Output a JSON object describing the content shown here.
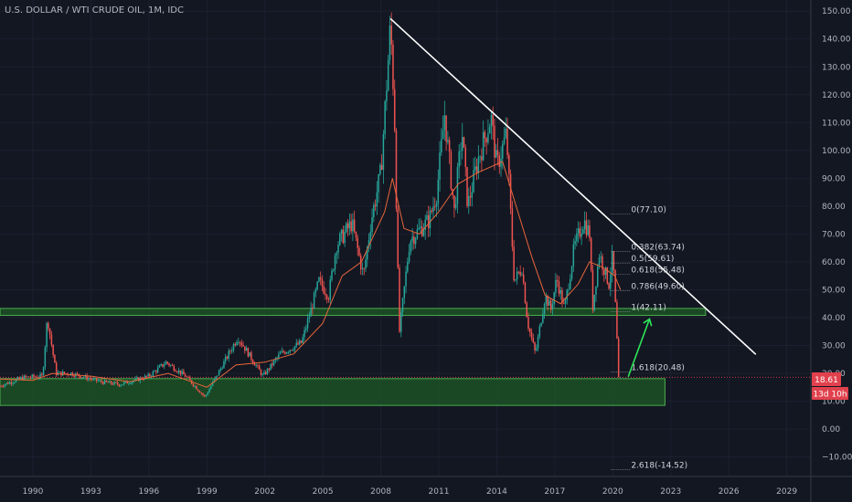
{
  "chart": {
    "title": "U.S. DOLLAR / WTI CRUDE OIL, 1M, IDC",
    "price_tag": "18.61",
    "countdown_tag": "13d 10h",
    "colors": {
      "background": "#131722",
      "up": "#26a69a",
      "down": "#ef5350",
      "ma": "#e8663a",
      "zone_fill": "#1e5a26",
      "zone_stroke": "#4caf50",
      "trendline": "#ffffff",
      "arrow": "#2ee65a",
      "tag": "#e0414d",
      "fib_line": "#9598a1"
    }
  },
  "chart_data": {
    "type": "candlestick",
    "title": "U.S. DOLLAR / WTI CRUDE OIL, 1M, IDC",
    "xlabel": "",
    "ylabel": "",
    "x_range": [
      1988.3,
      2030.2
    ],
    "ylim": [
      -17,
      154
    ],
    "x_ticks": [
      1990,
      1993,
      1996,
      1999,
      2002,
      2005,
      2008,
      2011,
      2014,
      2017,
      2020,
      2023,
      2026,
      2029
    ],
    "y_ticks": [
      -10,
      0,
      10,
      20,
      30,
      40,
      50,
      60,
      70,
      80,
      90,
      100,
      110,
      120,
      130,
      140,
      150
    ],
    "last_price": 18.61,
    "price_path": [
      [
        1988.3,
        15.5
      ],
      [
        1989.5,
        18.5
      ],
      [
        1990.5,
        19
      ],
      [
        1990.75,
        40
      ],
      [
        1991.2,
        20
      ],
      [
        1992,
        20
      ],
      [
        1993.5,
        17
      ],
      [
        1994.5,
        16
      ],
      [
        1996,
        19
      ],
      [
        1996.9,
        24
      ],
      [
        1997.9,
        19
      ],
      [
        1998.9,
        11.5
      ],
      [
        1999.5,
        19
      ],
      [
        2000.6,
        33
      ],
      [
        2001.9,
        19
      ],
      [
        2002.8,
        27
      ],
      [
        2003.9,
        31
      ],
      [
        2004.8,
        53
      ],
      [
        2005.3,
        48
      ],
      [
        2005.7,
        66
      ],
      [
        2006.5,
        74
      ],
      [
        2007.1,
        55
      ],
      [
        2007.5,
        75
      ],
      [
        2008.0,
        92
      ],
      [
        2008.5,
        145
      ],
      [
        2008.7,
        115
      ],
      [
        2008.95,
        34
      ],
      [
        2009.5,
        68
      ],
      [
        2010.5,
        75
      ],
      [
        2010.9,
        85
      ],
      [
        2011.3,
        113
      ],
      [
        2011.8,
        78
      ],
      [
        2012.2,
        107
      ],
      [
        2012.5,
        80
      ],
      [
        2013.0,
        96
      ],
      [
        2013.7,
        112
      ],
      [
        2014.0,
        94
      ],
      [
        2014.5,
        106
      ],
      [
        2014.9,
        53
      ],
      [
        2015.3,
        58
      ],
      [
        2015.6,
        38
      ],
      [
        2016.0,
        27
      ],
      [
        2016.5,
        48
      ],
      [
        2016.8,
        43
      ],
      [
        2017.1,
        54
      ],
      [
        2017.5,
        43
      ],
      [
        2018.0,
        65
      ],
      [
        2018.5,
        75
      ],
      [
        2018.8,
        70
      ],
      [
        2018.95,
        43
      ],
      [
        2019.3,
        63
      ],
      [
        2019.8,
        52
      ],
      [
        2020.0,
        63
      ],
      [
        2020.15,
        42
      ],
      [
        2020.3,
        19
      ],
      [
        2020.4,
        18.61
      ]
    ],
    "moving_average": [
      [
        1988.3,
        18
      ],
      [
        1990,
        17.5
      ],
      [
        1991,
        20
      ],
      [
        1993,
        19
      ],
      [
        1995,
        17
      ],
      [
        1997,
        20
      ],
      [
        1999,
        15
      ],
      [
        2000.5,
        23
      ],
      [
        2002,
        24
      ],
      [
        2003.5,
        27
      ],
      [
        2005,
        38
      ],
      [
        2006,
        55
      ],
      [
        2007,
        60
      ],
      [
        2008.2,
        78
      ],
      [
        2008.6,
        90
      ],
      [
        2009.2,
        72
      ],
      [
        2010,
        70
      ],
      [
        2011,
        78
      ],
      [
        2012,
        88
      ],
      [
        2013,
        92
      ],
      [
        2014.3,
        96
      ],
      [
        2015,
        80
      ],
      [
        2015.8,
        62
      ],
      [
        2016.5,
        48
      ],
      [
        2017.3,
        45
      ],
      [
        2018.2,
        52
      ],
      [
        2018.8,
        60
      ],
      [
        2019.5,
        58
      ],
      [
        2020.1,
        55
      ],
      [
        2020.4,
        50
      ]
    ],
    "zones": [
      {
        "x": [
          1988.3,
          2024.8
        ],
        "y": [
          40.8,
          43.3
        ]
      },
      {
        "x": [
          1988.3,
          2022.7
        ],
        "y": [
          8.5,
          18.1
        ]
      }
    ],
    "trendline": {
      "from": [
        2008.5,
        147.3
      ],
      "to": [
        2027.4,
        26.8
      ]
    },
    "projection_arrow": {
      "from": [
        2020.8,
        18.8
      ],
      "to": [
        2021.9,
        39.5
      ]
    },
    "fib_levels": [
      {
        "label": "0(77.10)",
        "value": 77.1
      },
      {
        "label": "0.382(63.74)",
        "value": 63.74
      },
      {
        "label": "0.5(59.61)",
        "value": 59.61
      },
      {
        "label": "0.618(55.48)",
        "value": 55.48
      },
      {
        "label": "0.786(49.60)",
        "value": 49.6
      },
      {
        "label": "1(42.11)",
        "value": 42.11
      },
      {
        "label": "1.618(20.48)",
        "value": 20.48
      },
      {
        "label": "2.618(-14.52)",
        "value": -14.52
      }
    ],
    "fib_x_range": [
      2019.9,
      2020.9
    ]
  }
}
